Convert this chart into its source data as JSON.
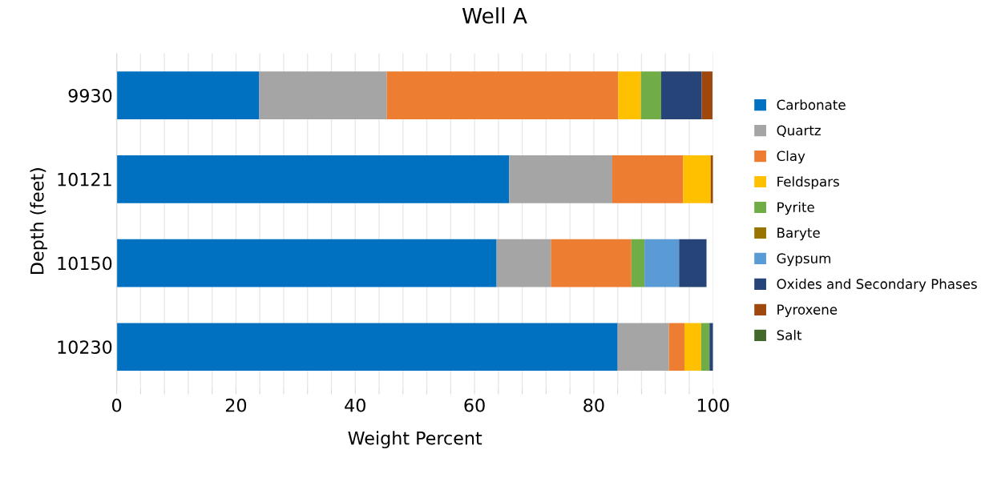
{
  "chart_data": {
    "type": "bar",
    "orientation": "horizontal",
    "stacked": true,
    "title": "Well A",
    "xlabel": "Weight Percent",
    "ylabel": "Depth (feet)",
    "categories": [
      "9930",
      "10121",
      "10150",
      "10230"
    ],
    "series": [
      {
        "name": "Carbonate",
        "color": "#0070c0",
        "values": [
          23.9,
          65.8,
          63.7,
          84.0
        ]
      },
      {
        "name": "Quartz",
        "color": "#a5a5a5",
        "values": [
          21.4,
          17.3,
          9.1,
          8.6
        ]
      },
      {
        "name": "Clay",
        "color": "#ed7d31",
        "values": [
          38.8,
          11.9,
          13.5,
          2.6
        ]
      },
      {
        "name": "Feldspars",
        "color": "#ffc000",
        "values": [
          3.8,
          4.6,
          0,
          2.8
        ]
      },
      {
        "name": "Pyrite",
        "color": "#70ad47",
        "values": [
          3.4,
          0,
          2.2,
          1.4
        ]
      },
      {
        "name": "Baryte",
        "color": "#997300",
        "values": [
          0,
          0,
          0,
          0
        ]
      },
      {
        "name": "Gypsum",
        "color": "#5b9bd5",
        "values": [
          0,
          0,
          5.8,
          0
        ]
      },
      {
        "name": "Oxides and Secondary Phases",
        "color": "#264478",
        "values": [
          6.8,
          0,
          4.6,
          0.6
        ]
      },
      {
        "name": "Pyroxene",
        "color": "#9e480e",
        "values": [
          1.8,
          0.4,
          0,
          0
        ]
      },
      {
        "name": "Salt",
        "color": "#43682b",
        "values": [
          0,
          0,
          0,
          0
        ]
      }
    ],
    "xlim": [
      0,
      100
    ],
    "xticks": [
      0,
      {
        "value": 4,
        "label": null
      },
      {
        "value": 8,
        "label": null
      },
      {
        "value": 12,
        "label": null
      },
      {
        "value": 16,
        "label": null
      },
      20,
      {
        "value": 24,
        "label": null
      },
      {
        "value": 28,
        "label": null
      },
      {
        "value": 32,
        "label": null
      },
      {
        "value": 36,
        "label": null
      },
      40,
      {
        "value": 44,
        "label": null
      },
      {
        "value": 48,
        "label": null
      },
      {
        "value": 52,
        "label": null
      },
      {
        "value": 56,
        "label": null
      },
      60,
      {
        "value": 64,
        "label": null
      },
      {
        "value": 68,
        "label": null
      },
      {
        "value": 72,
        "label": null
      },
      {
        "value": 76,
        "label": null
      },
      80,
      {
        "value": 84,
        "label": null
      },
      {
        "value": 88,
        "label": null
      },
      {
        "value": 92,
        "label": null
      },
      {
        "value": 96,
        "label": null
      },
      100
    ],
    "grid": "x",
    "legend": "right"
  }
}
